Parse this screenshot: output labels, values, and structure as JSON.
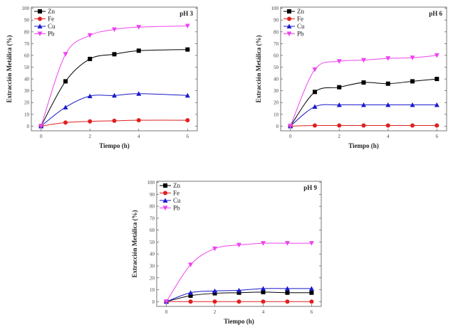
{
  "chart_data": [
    {
      "type": "line",
      "title": "pH 3",
      "xlabel": "Tiempo (h)",
      "ylabel": "Extracción Metálica (%)",
      "xlim": [
        -0.4,
        6.4
      ],
      "ylim": [
        -4,
        101
      ],
      "xticks": [
        "0",
        "2",
        "4",
        "6"
      ],
      "yticks": [
        "0",
        "10",
        "20",
        "30",
        "40",
        "50",
        "60",
        "70",
        "80",
        "90",
        "100"
      ],
      "legend": "top-left",
      "x": [
        0,
        1,
        2,
        3,
        4,
        6
      ],
      "series": [
        {
          "name": "Zn",
          "color": "#000000",
          "marker": "square",
          "values": [
            0,
            38,
            57,
            61,
            64,
            65
          ]
        },
        {
          "name": "Fe",
          "color": "#e02020",
          "marker": "circle",
          "values": [
            0,
            3,
            4,
            4.5,
            5,
            5
          ]
        },
        {
          "name": "Cu",
          "color": "#1a1acc",
          "marker": "triangle-up",
          "values": [
            0,
            16,
            25.5,
            26,
            27.5,
            26
          ]
        },
        {
          "name": "Pb",
          "color": "#ee44ee",
          "marker": "triangle-down",
          "values": [
            0,
            61,
            77,
            82,
            84,
            85
          ]
        }
      ]
    },
    {
      "type": "line",
      "title": "pH 6",
      "xlabel": "Tiempo (h)",
      "ylabel": "Extracción Metálica (%)",
      "xlim": [
        -0.4,
        6.4
      ],
      "ylim": [
        -4,
        101
      ],
      "xticks": [
        "0",
        "2",
        "4",
        "6"
      ],
      "yticks": [
        "0",
        "10",
        "20",
        "30",
        "40",
        "50",
        "60",
        "70",
        "80",
        "90",
        "100"
      ],
      "legend": "top-left",
      "x": [
        0,
        1,
        2,
        3,
        4,
        5,
        6
      ],
      "series": [
        {
          "name": "Zn",
          "color": "#000000",
          "marker": "square",
          "values": [
            0,
            29,
            33,
            37,
            36,
            38,
            40
          ]
        },
        {
          "name": "Fe",
          "color": "#e02020",
          "marker": "circle",
          "values": [
            0,
            0.5,
            0.5,
            0.5,
            0.5,
            0.5,
            0.5
          ]
        },
        {
          "name": "Cu",
          "color": "#1a1acc",
          "marker": "triangle-up",
          "values": [
            0,
            16.5,
            18,
            18,
            18,
            18,
            18
          ]
        },
        {
          "name": "Pb",
          "color": "#ee44ee",
          "marker": "triangle-down",
          "values": [
            0,
            48,
            55,
            56,
            57.5,
            58,
            60
          ]
        }
      ]
    },
    {
      "type": "line",
      "title": "pH 9",
      "xlabel": "Tiempo (h)",
      "ylabel": "Extracción Metálica (%)",
      "xlim": [
        -0.4,
        6.4
      ],
      "ylim": [
        -4,
        101
      ],
      "xticks": [
        "0",
        "2",
        "4",
        "6"
      ],
      "yticks": [
        "0",
        "10",
        "20",
        "30",
        "40",
        "50",
        "60",
        "70",
        "80",
        "90",
        "100"
      ],
      "legend": "top-left",
      "x": [
        0,
        1,
        2,
        3,
        4,
        5,
        6
      ],
      "series": [
        {
          "name": "Zn",
          "color": "#000000",
          "marker": "square",
          "values": [
            0,
            5,
            7,
            7.5,
            8,
            7.5,
            7.5
          ]
        },
        {
          "name": "Fe",
          "color": "#e02020",
          "marker": "circle",
          "values": [
            0,
            0,
            0,
            0,
            0,
            0,
            0
          ]
        },
        {
          "name": "Cu",
          "color": "#1a1acc",
          "marker": "triangle-up",
          "values": [
            0,
            7.5,
            9,
            9.5,
            11,
            11,
            11
          ]
        },
        {
          "name": "Pb",
          "color": "#ee44ee",
          "marker": "triangle-down",
          "values": [
            0,
            31,
            44.5,
            47.5,
            49,
            49,
            49
          ]
        }
      ]
    }
  ]
}
